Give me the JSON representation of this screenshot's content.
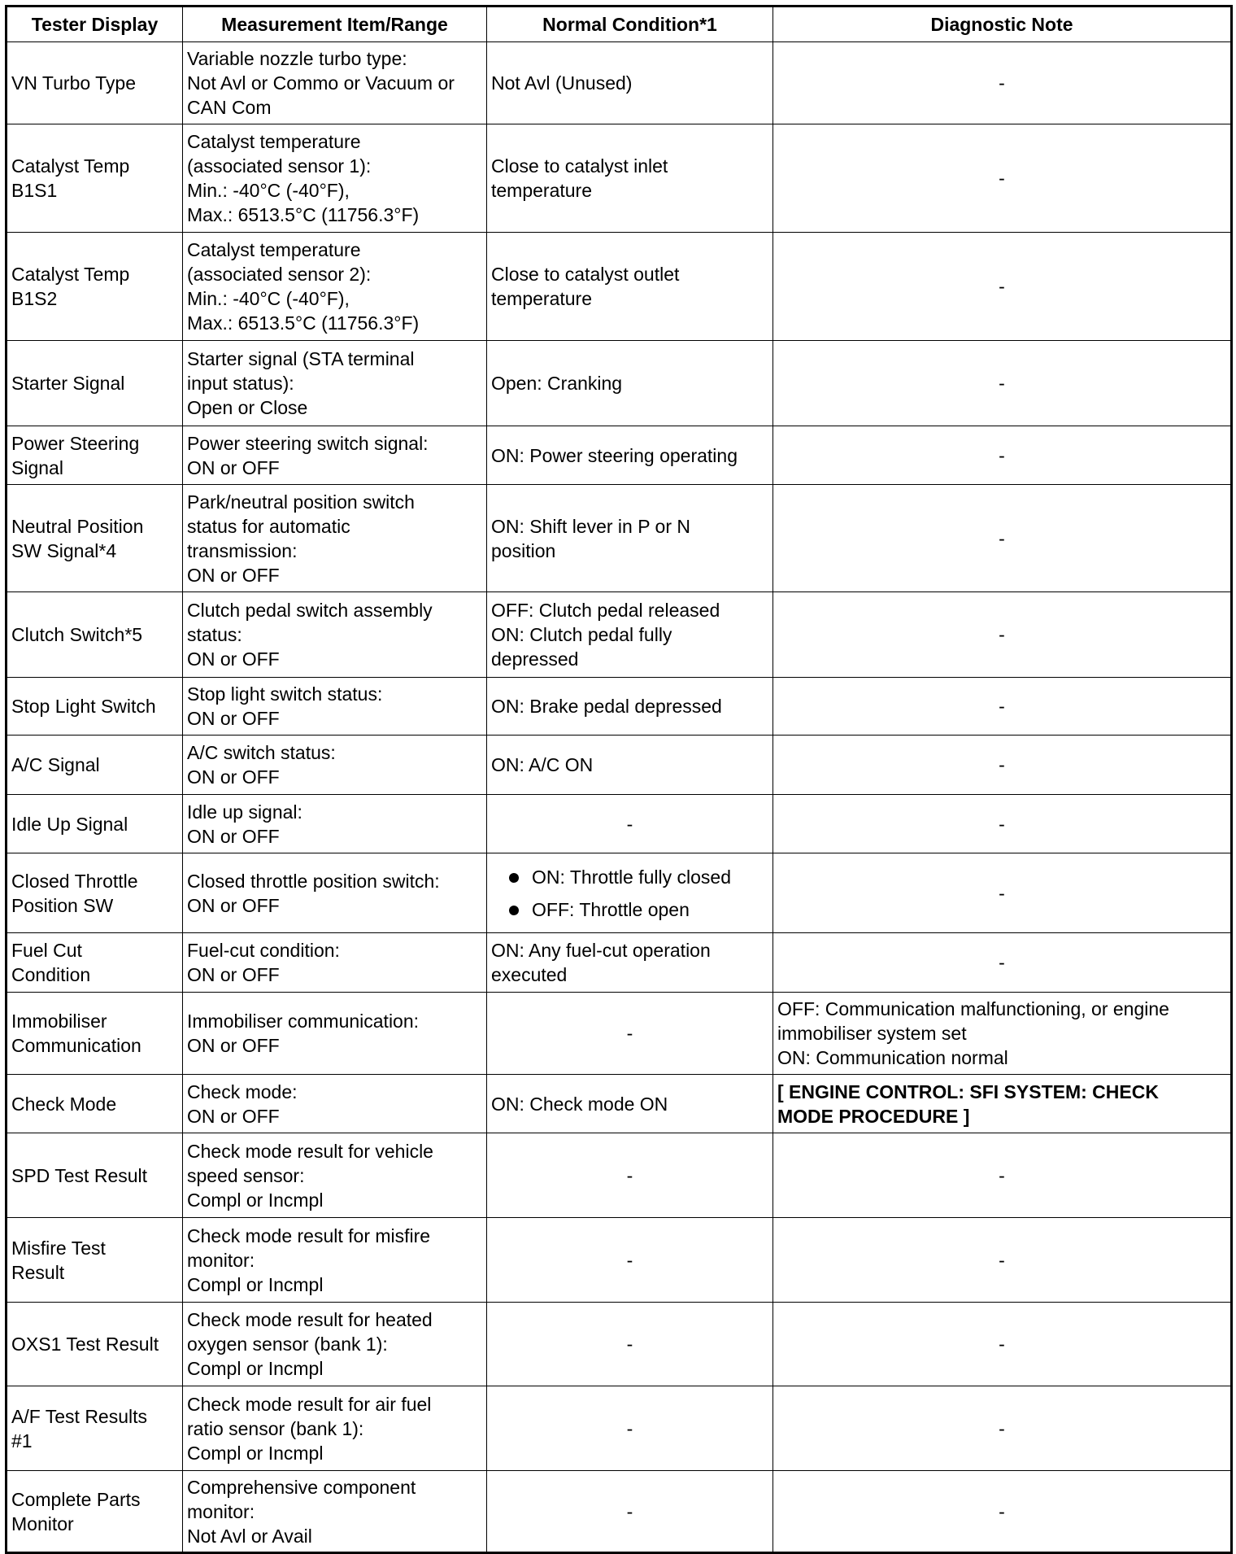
{
  "headers": [
    "Tester Display",
    "Measurement Item/Range",
    "Normal Condition*1",
    "Diagnostic Note"
  ],
  "rows": [
    {
      "display": "VN Turbo Type",
      "item": "Variable nozzle turbo type:\nNot Avl or Commo or Vacuum or\nCAN Com",
      "normal": "Not Avl (Unused)",
      "note": "-"
    },
    {
      "display": "Catalyst Temp\nB1S1",
      "item": "Catalyst temperature\n(associated sensor 1):\nMin.: -40°C (-40°F),\nMax.: 6513.5°C (11756.3°F)",
      "normal": "Close to catalyst inlet\ntemperature",
      "note": "-"
    },
    {
      "display": "Catalyst Temp\nB1S2",
      "item": "Catalyst temperature\n(associated sensor 2):\nMin.: -40°C (-40°F),\nMax.: 6513.5°C (11756.3°F)",
      "normal": "Close to catalyst outlet\ntemperature",
      "note": "-"
    },
    {
      "display": "Starter Signal",
      "item": "Starter signal (STA terminal\ninput status):\nOpen or Close",
      "normal": "Open: Cranking",
      "note": "-"
    },
    {
      "display": "Power Steering\nSignal",
      "item": "Power steering switch signal:\nON or OFF",
      "normal": "ON: Power steering operating",
      "note": "-"
    },
    {
      "display": "Neutral Position\nSW Signal*4",
      "item": "Park/neutral position switch\nstatus for automatic\ntransmission:\nON or OFF",
      "normal": "ON: Shift lever in P or N\nposition",
      "note": "-"
    },
    {
      "display": "Clutch Switch*5",
      "item": "Clutch pedal switch assembly\nstatus:\nON or OFF",
      "normal": "OFF: Clutch pedal released\nON: Clutch pedal fully\ndepressed",
      "note": "-"
    },
    {
      "display": "Stop Light Switch",
      "item": "Stop light switch status:\nON or OFF",
      "normal": "ON: Brake pedal depressed",
      "note": "-"
    },
    {
      "display": "A/C Signal",
      "item": "A/C switch status:\nON or OFF",
      "normal": "ON: A/C ON",
      "note": "-"
    },
    {
      "display": "Idle Up Signal",
      "item": "Idle up signal:\nON or OFF",
      "normal": "-",
      "note": "-"
    },
    {
      "display": "Closed Throttle\nPosition SW",
      "item": "Closed throttle position switch:\nON or OFF",
      "normal_bullets": [
        "ON: Throttle fully closed",
        "OFF: Throttle open"
      ],
      "note": "-"
    },
    {
      "display": "Fuel Cut\nCondition",
      "item": "Fuel-cut condition:\nON or OFF",
      "normal": "ON: Any fuel-cut operation\nexecuted",
      "note": "-"
    },
    {
      "display": "Immobiliser\nCommunication",
      "item": "Immobiliser communication:\nON or OFF",
      "normal": "-",
      "note": "OFF: Communication malfunctioning, or engine\nimmobiliser system set\nON: Communication normal"
    },
    {
      "display": "Check Mode",
      "item": "Check mode:\nON or OFF",
      "normal": "ON: Check mode ON",
      "note_link": "[ ENGINE CONTROL: SFI SYSTEM: CHECK\nMODE PROCEDURE ]"
    },
    {
      "display": "SPD Test Result",
      "item": "Check mode result for vehicle\nspeed sensor:\nCompl or Incmpl",
      "normal": "-",
      "note": "-"
    },
    {
      "display": "Misfire Test\nResult",
      "item": "Check mode result for misfire\nmonitor:\nCompl or Incmpl",
      "normal": "-",
      "note": "-"
    },
    {
      "display": "OXS1 Test Result",
      "item": "Check mode result for heated\noxygen sensor (bank 1):\nCompl or Incmpl",
      "normal": "-",
      "note": "-"
    },
    {
      "display": "A/F Test Results\n#1",
      "item": "Check mode result for air fuel\nratio sensor (bank 1):\nCompl or Incmpl",
      "normal": "-",
      "note": "-"
    },
    {
      "display": "Complete Parts\nMonitor",
      "item": "Comprehensive component\nmonitor:\nNot Avl or Avail",
      "normal": "-",
      "note": "-"
    }
  ]
}
